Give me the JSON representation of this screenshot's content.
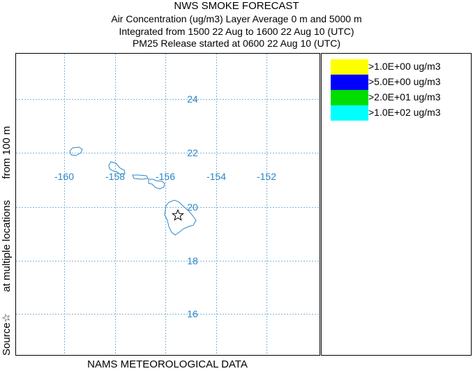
{
  "header": {
    "title": "NWS SMOKE FORECAST",
    "line1": "Air Concentration (ug/m3) Layer Average    0 m and  5000 m",
    "line2": "Integrated from 1500 22 Aug to 1600 22 Aug 10 (UTC)",
    "line3": "PM25 Release started at 0600 22 Aug 10 (UTC)"
  },
  "map": {
    "grid_color": "#7fb3d9",
    "coast_color": "#2a86c8",
    "label_color": "#2a86c8",
    "lon_labels": [
      "-160",
      "-158",
      "-156",
      "-154",
      "-152"
    ],
    "lat_labels": [
      "24",
      "22",
      "20",
      "18",
      "16"
    ],
    "source_marker": "star-icon"
  },
  "legend": {
    "items": [
      {
        "label": ">1.0E+00 ug/m3",
        "color": "#ffff00"
      },
      {
        "label": ">5.0E+00 ug/m3",
        "color": "#0000ff"
      },
      {
        "label": ">2.0E+01 ug/m3",
        "color": "#00dd00"
      },
      {
        "label": ">1.0E+02 ug/m3",
        "color": "#00ffff"
      }
    ]
  },
  "side_label": {
    "part1": "Source☆",
    "part2": "at multiple locations",
    "part3": "from   100 m"
  },
  "footer": "NAMS METEOROLOGICAL DATA"
}
